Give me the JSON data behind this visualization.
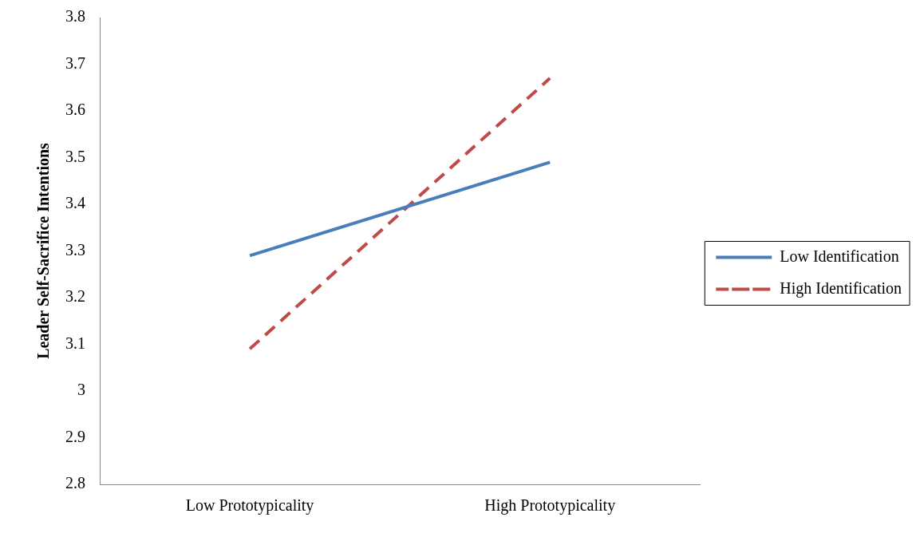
{
  "chart_data": {
    "type": "line",
    "ylabel": "Leader Self-Sacrifice Intentions",
    "categories": [
      "Low Prototypicality",
      "High Prototypicality"
    ],
    "series": [
      {
        "name": "Low Identification",
        "color": "#4a7ebb",
        "values": [
          3.29,
          3.49
        ],
        "line_style": "solid"
      },
      {
        "name": "High Identification",
        "color": "#be4b48",
        "values": [
          3.09,
          3.67
        ],
        "line_style": "dashed"
      }
    ],
    "ylim": [
      2.8,
      3.8
    ],
    "yticks": [
      2.8,
      2.9,
      3,
      3.1,
      3.2,
      3.3,
      3.4,
      3.5,
      3.6,
      3.7,
      3.8
    ],
    "grid": false,
    "legend": "right",
    "marker": "none"
  }
}
